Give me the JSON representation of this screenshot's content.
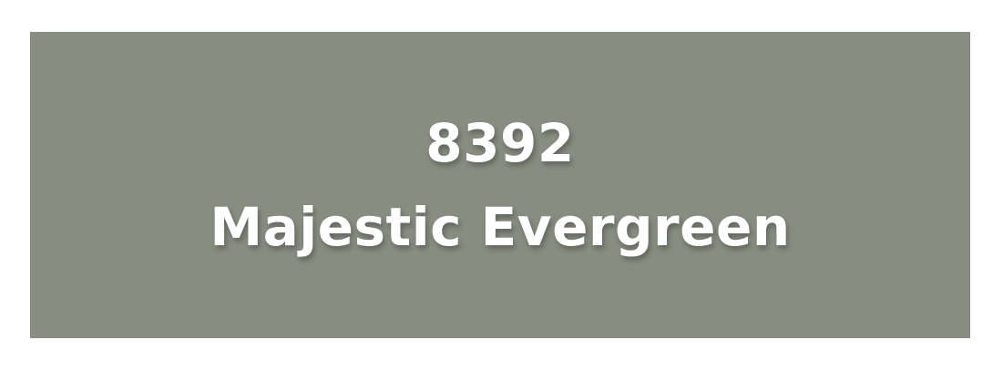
{
  "swatch": {
    "code": "8392",
    "name": "Majestic Evergreen",
    "background_color": "#878d81",
    "text_color": "#ffffff"
  }
}
